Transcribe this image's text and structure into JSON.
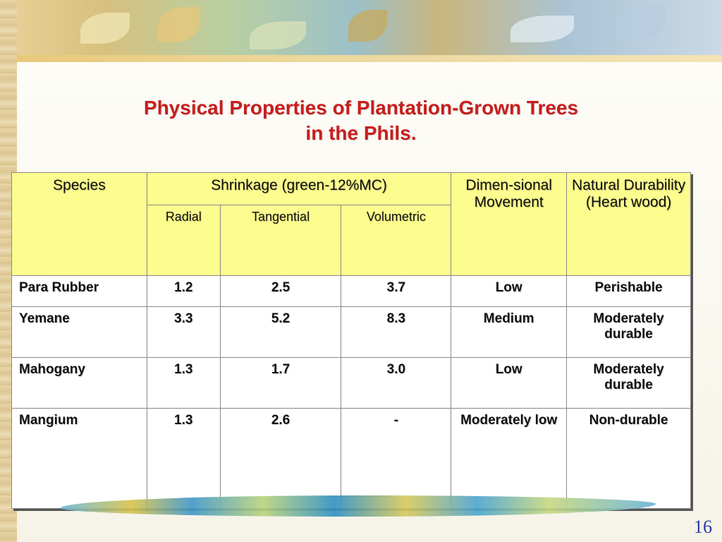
{
  "slide": {
    "title_line1": "Physical Properties of Plantation-Grown Trees",
    "title_line2": "in the Phils.",
    "page_number": "16"
  },
  "table": {
    "headers": {
      "species": "Species",
      "shrinkage": "Shrinkage (green-12%MC)",
      "radial": "Radial",
      "tangential": "Tangential",
      "volumetric": "Volumetric",
      "dimensional": "Dimen-sional Movement",
      "durability": "Natural Durability (Heart wood)"
    },
    "rows": [
      {
        "species": "Para Rubber",
        "radial": "1.2",
        "tangential": "2.5",
        "volumetric": "3.7",
        "movement": "Low",
        "durability": "Perishable"
      },
      {
        "species": "Yemane",
        "radial": "3.3",
        "tangential": "5.2",
        "volumetric": "8.3",
        "movement": "Medium",
        "durability": "Moderately durable"
      },
      {
        "species": "Mahogany",
        "radial": "1.3",
        "tangential": "1.7",
        "volumetric": "3.0",
        "movement": "Low",
        "durability": "Moderately durable"
      },
      {
        "species": "Mangium",
        "radial": "1.3",
        "tangential": "2.6",
        "volumetric": "-",
        "movement": "Moderately low",
        "durability": "Non-durable"
      }
    ]
  },
  "colors": {
    "title": "#c81e1e",
    "header_background": "#fdfc8e",
    "page_number": "#2a3aa8"
  }
}
